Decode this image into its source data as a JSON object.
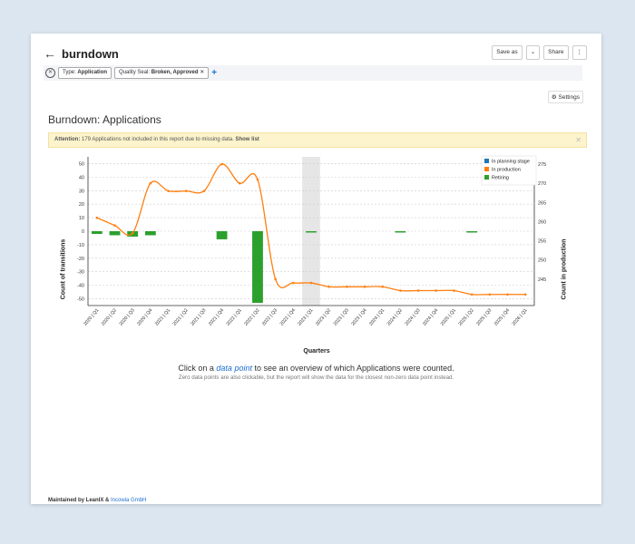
{
  "header": {
    "title": "burndown",
    "save_as": "Save as",
    "share": "Share",
    "more": "⋮"
  },
  "filters": [
    {
      "label": "Type:",
      "value": "Application"
    },
    {
      "label": "Quality Seal:",
      "value": "Broken, Approved"
    }
  ],
  "settings_label": "Settings",
  "report_title": "Burndown: Applications",
  "alert": {
    "prefix": "Attention:",
    "text": " 179 Applications not included in this report due to missing data. ",
    "link": "Show list"
  },
  "chart_data": {
    "type": "bar+line",
    "xlabel": "Quarters",
    "ylabel_left": "Count of transitions",
    "ylabel_right": "Count in production",
    "categories": [
      "2020 | Q1",
      "2020 | Q2",
      "2020 | Q3",
      "2020 | Q4",
      "2021 | Q1",
      "2021 | Q2",
      "2021 | Q3",
      "2021 | Q4",
      "2022 | Q1",
      "2022 | Q2",
      "2022 | Q3",
      "2022 | Q4",
      "2023 | Q1",
      "2023 | Q2",
      "2023 | Q3",
      "2023 | Q4",
      "2024 | Q1",
      "2024 | Q2",
      "2024 | Q3",
      "2024 | Q4",
      "2025 | Q1",
      "2025 | Q2",
      "2025 | Q3",
      "2025 | Q4",
      "2026 | Q1"
    ],
    "y_left": {
      "min": -55,
      "max": 55,
      "ticks": [
        50,
        40,
        30,
        20,
        10,
        0,
        -10,
        -20,
        -30,
        -40,
        -50
      ]
    },
    "y_right": {
      "min": 238.1,
      "max": 276.9,
      "ticks": [
        275,
        270,
        265,
        260,
        255,
        250,
        245
      ]
    },
    "highlight_category": "2023 | Q1",
    "legend_position": "top-right",
    "series": [
      {
        "name": "In planning stage",
        "color": "#1f77b4",
        "axis": "left",
        "type": "bar",
        "values": [
          0,
          0,
          -1,
          0,
          0,
          0,
          0,
          0,
          0,
          0,
          0,
          0,
          0,
          0,
          0,
          0,
          0,
          0,
          0,
          0,
          0,
          0,
          0,
          0,
          0
        ]
      },
      {
        "name": "In production",
        "color": "#ff7f0e",
        "axis": "right",
        "type": "line",
        "values": [
          261,
          259,
          257,
          270,
          268,
          268,
          268,
          275,
          270,
          271,
          245,
          244,
          244,
          243,
          243,
          243,
          243,
          242,
          242,
          242,
          242,
          241,
          241,
          241,
          241
        ]
      },
      {
        "name": "Retiring",
        "color": "#2ca02c",
        "axis": "left",
        "type": "bar",
        "values": [
          -2,
          -3,
          -4,
          -3,
          0,
          0,
          0,
          -6,
          0,
          -53,
          0,
          0,
          -1,
          0,
          0,
          0,
          0,
          -1,
          0,
          0,
          0,
          -1,
          0,
          0,
          0
        ]
      }
    ]
  },
  "cta": {
    "before": "Click on a ",
    "link": "data point",
    "after": " to see an overview of which Applications were counted."
  },
  "subnote": "Zero data points are also clickable, but the report will show the data for the closest non-zero data point instead.",
  "footer": {
    "text": "Maintained by LeanIX & ",
    "link": "Incowia GmbH"
  }
}
